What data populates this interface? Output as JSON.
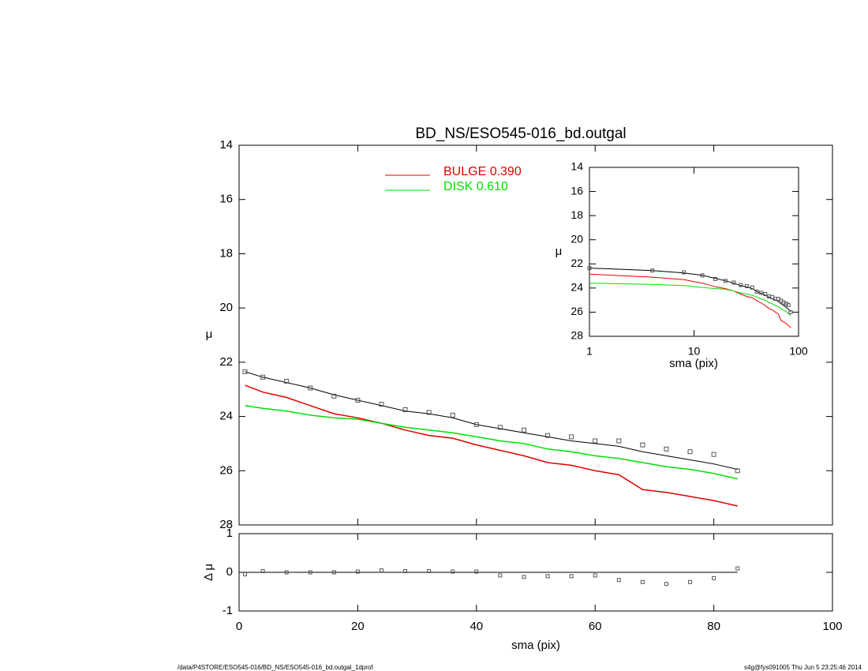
{
  "chart_data": {
    "type": "line",
    "title": "BD_NS/ESO545-016_bd.outgal",
    "x_label": "sma (pix)",
    "y_label": "μ",
    "x": [
      1,
      4,
      8,
      12,
      16,
      20,
      24,
      28,
      32,
      36,
      40,
      44,
      48,
      52,
      56,
      60,
      64,
      68,
      72,
      76,
      80,
      84
    ],
    "xlim": [
      0,
      100
    ],
    "xticks": [
      0,
      20,
      40,
      60,
      80,
      100
    ],
    "ylim": [
      28,
      14
    ],
    "yticks": [
      14,
      16,
      18,
      20,
      22,
      24,
      26,
      28
    ],
    "data_points": {
      "color": "#555555",
      "values": [
        22.35,
        22.55,
        22.7,
        22.95,
        23.25,
        23.4,
        23.55,
        23.75,
        23.85,
        23.95,
        24.3,
        24.4,
        24.5,
        24.7,
        24.75,
        24.9,
        24.9,
        25.05,
        25.2,
        25.3,
        25.4,
        26.0
      ]
    },
    "model": {
      "color": "#000000",
      "values": [
        22.35,
        22.55,
        22.75,
        22.95,
        23.2,
        23.4,
        23.6,
        23.8,
        23.9,
        24.05,
        24.3,
        24.45,
        24.6,
        24.75,
        24.9,
        25.0,
        25.1,
        25.3,
        25.45,
        25.6,
        25.75,
        25.95
      ]
    },
    "series": [
      {
        "name": "BULGE  0.390",
        "color": "#e00000",
        "values": [
          22.85,
          23.1,
          23.3,
          23.6,
          23.9,
          24.05,
          24.25,
          24.5,
          24.7,
          24.8,
          25.05,
          25.25,
          25.45,
          25.7,
          25.8,
          26.0,
          26.15,
          26.7,
          26.8,
          26.95,
          27.1,
          27.3
        ]
      },
      {
        "name": "DISK  0.610",
        "color": "#00e000",
        "values": [
          23.6,
          23.7,
          23.8,
          23.95,
          24.05,
          24.1,
          24.25,
          24.4,
          24.5,
          24.6,
          24.75,
          24.9,
          25.0,
          25.2,
          25.3,
          25.45,
          25.55,
          25.7,
          25.85,
          25.95,
          26.1,
          26.3
        ]
      }
    ],
    "residuals": {
      "y_label": "Δ μ",
      "ylim": [
        -1,
        1
      ],
      "yticks": [
        -1,
        0,
        1
      ],
      "color": "#555555",
      "values": [
        -0.05,
        0.03,
        0.0,
        0.0,
        0.0,
        0.02,
        0.05,
        0.03,
        0.03,
        0.02,
        0.02,
        -0.08,
        -0.12,
        -0.1,
        -0.1,
        -0.08,
        -0.2,
        -0.25,
        -0.3,
        -0.25,
        -0.15,
        0.1
      ]
    },
    "inset": {
      "x_label": "sma (pix)",
      "y_label": "μ",
      "log_x": true,
      "xlim": [
        1,
        100
      ],
      "xticks": [
        1,
        10,
        100
      ],
      "ylim": [
        28,
        14
      ],
      "yticks": [
        14,
        16,
        18,
        20,
        22,
        24,
        26,
        28
      ]
    },
    "footer_left": "/data/P4STORE/ESO545-016/BD_NS/ESO545-016_bd.outgal_1dprof",
    "footer_right": "s4g@fys091005  Thu Jun  5 23:25:46 2014"
  }
}
